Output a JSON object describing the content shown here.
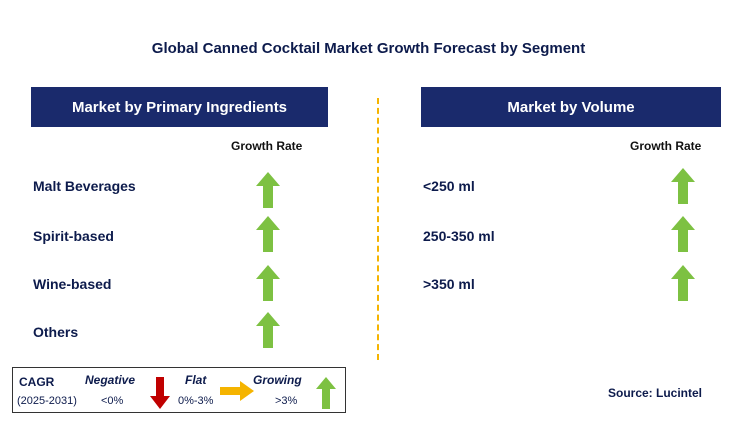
{
  "title": "Global Canned Cocktail Market Growth Forecast by Segment",
  "left_panel": {
    "header": "Market by Primary Ingredients",
    "growth_label": "Growth Rate",
    "items": [
      {
        "label": "Malt Beverages",
        "trend": "growing"
      },
      {
        "label": "Spirit-based",
        "trend": "growing"
      },
      {
        "label": "Wine-based",
        "trend": "growing"
      },
      {
        "label": "Others",
        "trend": "growing"
      }
    ]
  },
  "right_panel": {
    "header": "Market by Volume",
    "growth_label": "Growth Rate",
    "items": [
      {
        "label": "<250 ml",
        "trend": "growing"
      },
      {
        "label": "250-350 ml",
        "trend": "growing"
      },
      {
        "label": ">350 ml",
        "trend": "growing"
      }
    ]
  },
  "legend": {
    "cagr_label": "CAGR",
    "period": "(2025-2031)",
    "negative_label": "Negative",
    "negative_range": "<0%",
    "flat_label": "Flat",
    "flat_range": "0%-3%",
    "growing_label": "Growing",
    "growing_range": ">3%"
  },
  "source": "Source: Lucintel",
  "colors": {
    "header_bg": "#1a2a6c",
    "growing_arrow": "#7dc142",
    "negative_arrow": "#c00000",
    "flat_arrow": "#f5b400",
    "divider": "#f5b400"
  }
}
